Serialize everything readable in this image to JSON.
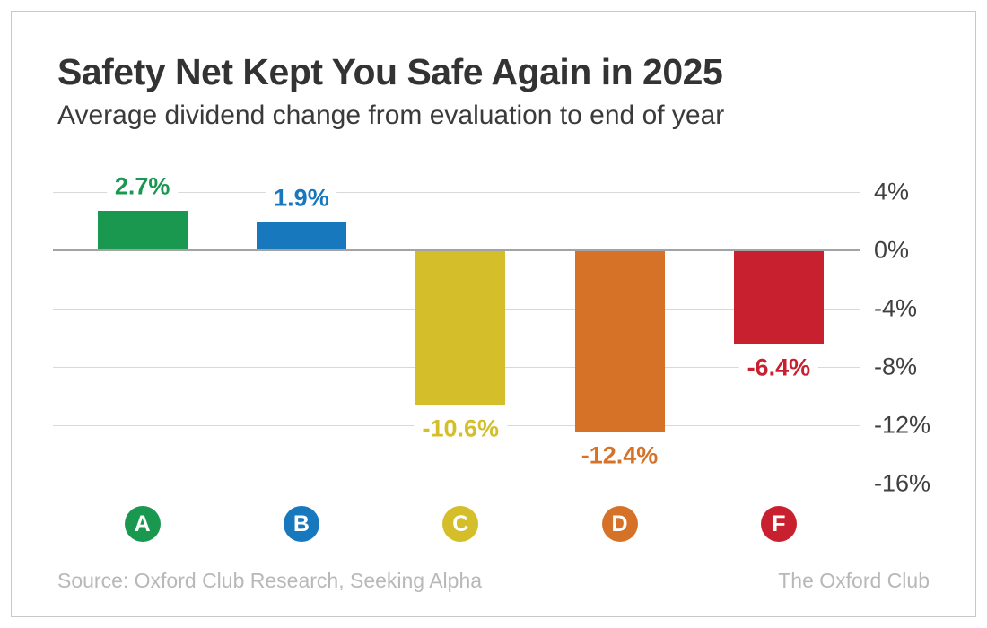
{
  "header": {
    "title": "Safety Net Kept You Safe Again in 2025",
    "subtitle": "Average dividend change from evaluation to end of year"
  },
  "chart_data": {
    "type": "bar",
    "title": "Safety Net Kept You Safe Again in 2025",
    "subtitle": "Average dividend change from evaluation to end of year",
    "categories": [
      "A",
      "B",
      "C",
      "D",
      "F"
    ],
    "values": [
      2.7,
      1.9,
      -10.6,
      -12.4,
      -6.4
    ],
    "value_labels": [
      "2.7%",
      "1.9%",
      "-10.6%",
      "-12.4%",
      "-6.4%"
    ],
    "bar_colors": [
      "#1a9850",
      "#1878be",
      "#d4bf2a",
      "#d67228",
      "#c8202e"
    ],
    "xlabel": "",
    "ylabel": "",
    "ylim": [
      -16,
      4
    ],
    "yticks": [
      4,
      0,
      -4,
      -8,
      -12,
      -16
    ],
    "ytick_labels": [
      "4%",
      "0%",
      "-4%",
      "-8%",
      "-12%",
      "-16%"
    ],
    "grid": true,
    "axis_side": "right",
    "legend": "none"
  },
  "footer": {
    "source": "Source: Oxford Club Research, Seeking Alpha",
    "brand": "The Oxford Club"
  },
  "colors": {
    "grade_a_green": "#1a9850",
    "grade_b_blue": "#1878be",
    "grade_c_yellow": "#d4bf2a",
    "grade_d_orange": "#d67228",
    "grade_f_red": "#c8202e",
    "gridline": "#d9d9d9",
    "zero_line": "#a3a3a3",
    "title_text": "#333333",
    "tick_text": "#404040",
    "footer_text": "#b8b8b8",
    "card_border": "#c9c9c9"
  }
}
